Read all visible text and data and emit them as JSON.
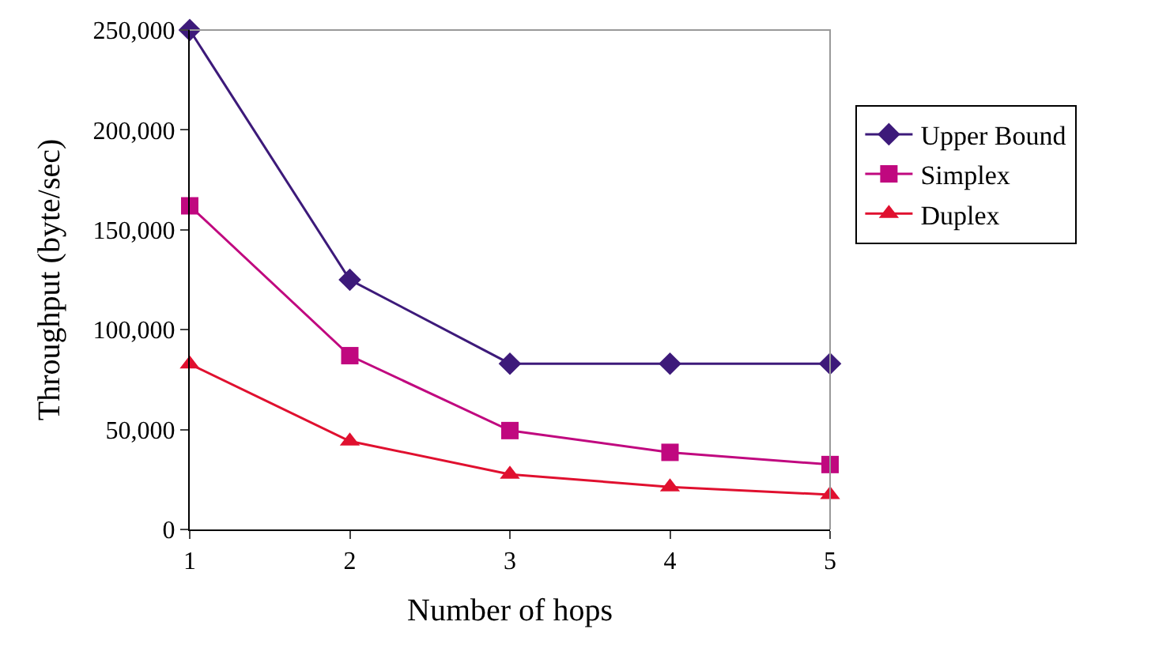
{
  "chart_data": {
    "type": "line",
    "xlabel": "Number of hops",
    "ylabel": "Throughput (byte/sec)",
    "x": [
      1,
      2,
      3,
      4,
      5
    ],
    "xlim": [
      1,
      5
    ],
    "xticks": [
      1,
      2,
      3,
      4,
      5
    ],
    "ylim": [
      0,
      250000
    ],
    "yticks": [
      {
        "value": 0,
        "label": "0"
      },
      {
        "value": 50000,
        "label": "50,000"
      },
      {
        "value": 100000,
        "label": "100,000"
      },
      {
        "value": 150000,
        "label": "150,000"
      },
      {
        "value": 200000,
        "label": "200,000"
      },
      {
        "value": 250000,
        "label": "250,000"
      }
    ],
    "legend": "right",
    "series": [
      {
        "name": "Upper Bound",
        "color": "#3d1a7a",
        "marker": "diamond",
        "values": [
          250000,
          125000,
          83000,
          83000,
          83000
        ]
      },
      {
        "name": "Simplex",
        "color": "#c0087f",
        "marker": "square",
        "values": [
          162000,
          87000,
          49500,
          38600,
          32500
        ]
      },
      {
        "name": "Duplex",
        "color": "#e0102f",
        "marker": "triangle",
        "values": [
          82800,
          44200,
          27600,
          21300,
          17400
        ]
      }
    ]
  }
}
